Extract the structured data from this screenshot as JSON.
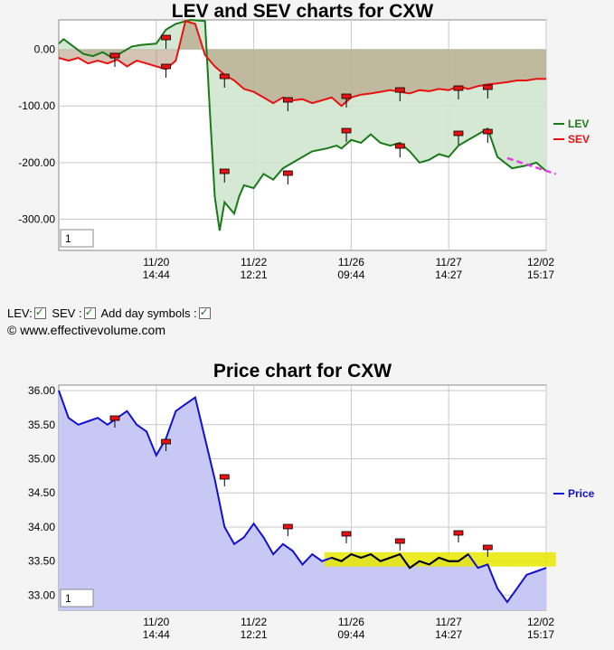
{
  "charts": {
    "lev_sev": {
      "title": "LEV and SEV charts for CXW",
      "y_ticks": [
        "0.00",
        "-100.00",
        "-200.00",
        "-300.00"
      ],
      "x_ticks": [
        {
          "date": "11/20",
          "time": "14:44"
        },
        {
          "date": "11/22",
          "time": "12:21"
        },
        {
          "date": "11/26",
          "time": "09:44"
        },
        {
          "date": "11/27",
          "time": "14:27"
        },
        {
          "date": "12/02",
          "time": "15:17"
        }
      ],
      "legend": [
        {
          "label": "LEV",
          "color": "#1a7a1a"
        },
        {
          "label": "SEV",
          "color": "#e81010"
        }
      ],
      "page_box": "1"
    },
    "price": {
      "title": "Price chart for CXW",
      "y_ticks": [
        "36.00",
        "35.50",
        "35.00",
        "34.50",
        "34.00",
        "33.50",
        "33.00"
      ],
      "x_ticks": [
        {
          "date": "11/20",
          "time": "14:44"
        },
        {
          "date": "11/22",
          "time": "12:21"
        },
        {
          "date": "11/26",
          "time": "09:44"
        },
        {
          "date": "11/27",
          "time": "14:27"
        },
        {
          "date": "12/02",
          "time": "15:17"
        }
      ],
      "legend": [
        {
          "label": "Price",
          "color": "#1010d0"
        }
      ],
      "page_box": "1"
    }
  },
  "controls": {
    "lev_label": "LEV:",
    "sev_label": "SEV :",
    "day_symbols_label": "Add day symbols :",
    "copyright": "© www.effectivevolume.com"
  },
  "chart_data": [
    {
      "type": "line",
      "title": "LEV and SEV charts for CXW",
      "x_tick_labels": [
        "11/20 14:44",
        "11/22 12:21",
        "11/26 09:44",
        "11/27 14:27",
        "12/02 15:17"
      ],
      "ylim": [
        -355,
        52
      ],
      "grid": true,
      "legend_position": "right",
      "series": [
        {
          "name": "LEV",
          "color": "#1a7a1a",
          "x": [
            0,
            0.01,
            0.03,
            0.05,
            0.07,
            0.09,
            0.11,
            0.13,
            0.15,
            0.17,
            0.2,
            0.22,
            0.24,
            0.27,
            0.3,
            0.31,
            0.32,
            0.33,
            0.34,
            0.35,
            0.36,
            0.37,
            0.38,
            0.4,
            0.42,
            0.44,
            0.46,
            0.48,
            0.5,
            0.52,
            0.55,
            0.57,
            0.58,
            0.6,
            0.62,
            0.64,
            0.66,
            0.68,
            0.7,
            0.72,
            0.74,
            0.76,
            0.78,
            0.8,
            0.82,
            0.84,
            0.86,
            0.88,
            0.9,
            0.93,
            0.96,
            0.98,
            1.0
          ],
          "values": [
            10,
            18,
            5,
            -8,
            -12,
            -5,
            -15,
            -5,
            5,
            8,
            10,
            35,
            45,
            52,
            50,
            -110,
            -260,
            -320,
            -270,
            -280,
            -290,
            -260,
            -240,
            -245,
            -220,
            -230,
            -210,
            -200,
            -190,
            -180,
            -175,
            -170,
            -175,
            -160,
            -165,
            -150,
            -165,
            -170,
            -165,
            -180,
            -200,
            -195,
            -185,
            -190,
            -170,
            -160,
            -150,
            -140,
            -190,
            -210,
            -205,
            -200,
            -215
          ]
        },
        {
          "name": "SEV",
          "color": "#e81010",
          "x": [
            0,
            0.02,
            0.04,
            0.06,
            0.08,
            0.1,
            0.12,
            0.14,
            0.16,
            0.18,
            0.2,
            0.22,
            0.24,
            0.26,
            0.28,
            0.3,
            0.32,
            0.34,
            0.36,
            0.38,
            0.4,
            0.42,
            0.44,
            0.46,
            0.48,
            0.5,
            0.52,
            0.54,
            0.56,
            0.58,
            0.6,
            0.62,
            0.64,
            0.66,
            0.68,
            0.7,
            0.72,
            0.74,
            0.76,
            0.78,
            0.8,
            0.82,
            0.84,
            0.86,
            0.88,
            0.9,
            0.92,
            0.94,
            0.96,
            0.98,
            1.0
          ],
          "values": [
            -15,
            -20,
            -15,
            -25,
            -20,
            -25,
            -18,
            -30,
            -20,
            -25,
            -30,
            -35,
            -20,
            50,
            45,
            -10,
            -30,
            -45,
            -55,
            -70,
            -75,
            -85,
            -95,
            -85,
            -90,
            -88,
            -95,
            -90,
            -85,
            -100,
            -85,
            -80,
            -78,
            -75,
            -72,
            -75,
            -78,
            -72,
            -74,
            -70,
            -72,
            -65,
            -70,
            -65,
            -62,
            -60,
            -58,
            -55,
            -55,
            -52,
            -52
          ]
        }
      ]
    },
    {
      "type": "line",
      "title": "Price chart for CXW",
      "x_tick_labels": [
        "11/20 14:44",
        "11/22 12:21",
        "11/26 09:44",
        "11/27 14:27",
        "12/02 15:17"
      ],
      "ylim": [
        32.78,
        36.08
      ],
      "grid": true,
      "legend_position": "right",
      "series": [
        {
          "name": "Price",
          "color": "#1010d0",
          "x": [
            0,
            0.02,
            0.04,
            0.06,
            0.08,
            0.1,
            0.12,
            0.14,
            0.16,
            0.18,
            0.2,
            0.22,
            0.24,
            0.26,
            0.28,
            0.3,
            0.32,
            0.34,
            0.36,
            0.38,
            0.4,
            0.42,
            0.44,
            0.46,
            0.48,
            0.5,
            0.52,
            0.54,
            0.56,
            0.58,
            0.6,
            0.62,
            0.64,
            0.66,
            0.68,
            0.7,
            0.72,
            0.74,
            0.76,
            0.78,
            0.8,
            0.82,
            0.84,
            0.86,
            0.88,
            0.9,
            0.92,
            0.94,
            0.96,
            0.98,
            1.0
          ],
          "values": [
            36.0,
            35.6,
            35.5,
            35.55,
            35.6,
            35.5,
            35.6,
            35.7,
            35.5,
            35.4,
            35.05,
            35.3,
            35.7,
            35.8,
            35.9,
            35.3,
            34.7,
            34.0,
            33.75,
            33.85,
            34.05,
            33.85,
            33.6,
            33.75,
            33.65,
            33.45,
            33.6,
            33.5,
            33.55,
            33.5,
            33.6,
            33.55,
            33.6,
            33.5,
            33.55,
            33.6,
            33.4,
            33.5,
            33.45,
            33.55,
            33.5,
            33.5,
            33.6,
            33.4,
            33.45,
            33.1,
            32.9,
            33.1,
            33.3,
            33.35,
            33.4
          ]
        }
      ]
    }
  ]
}
